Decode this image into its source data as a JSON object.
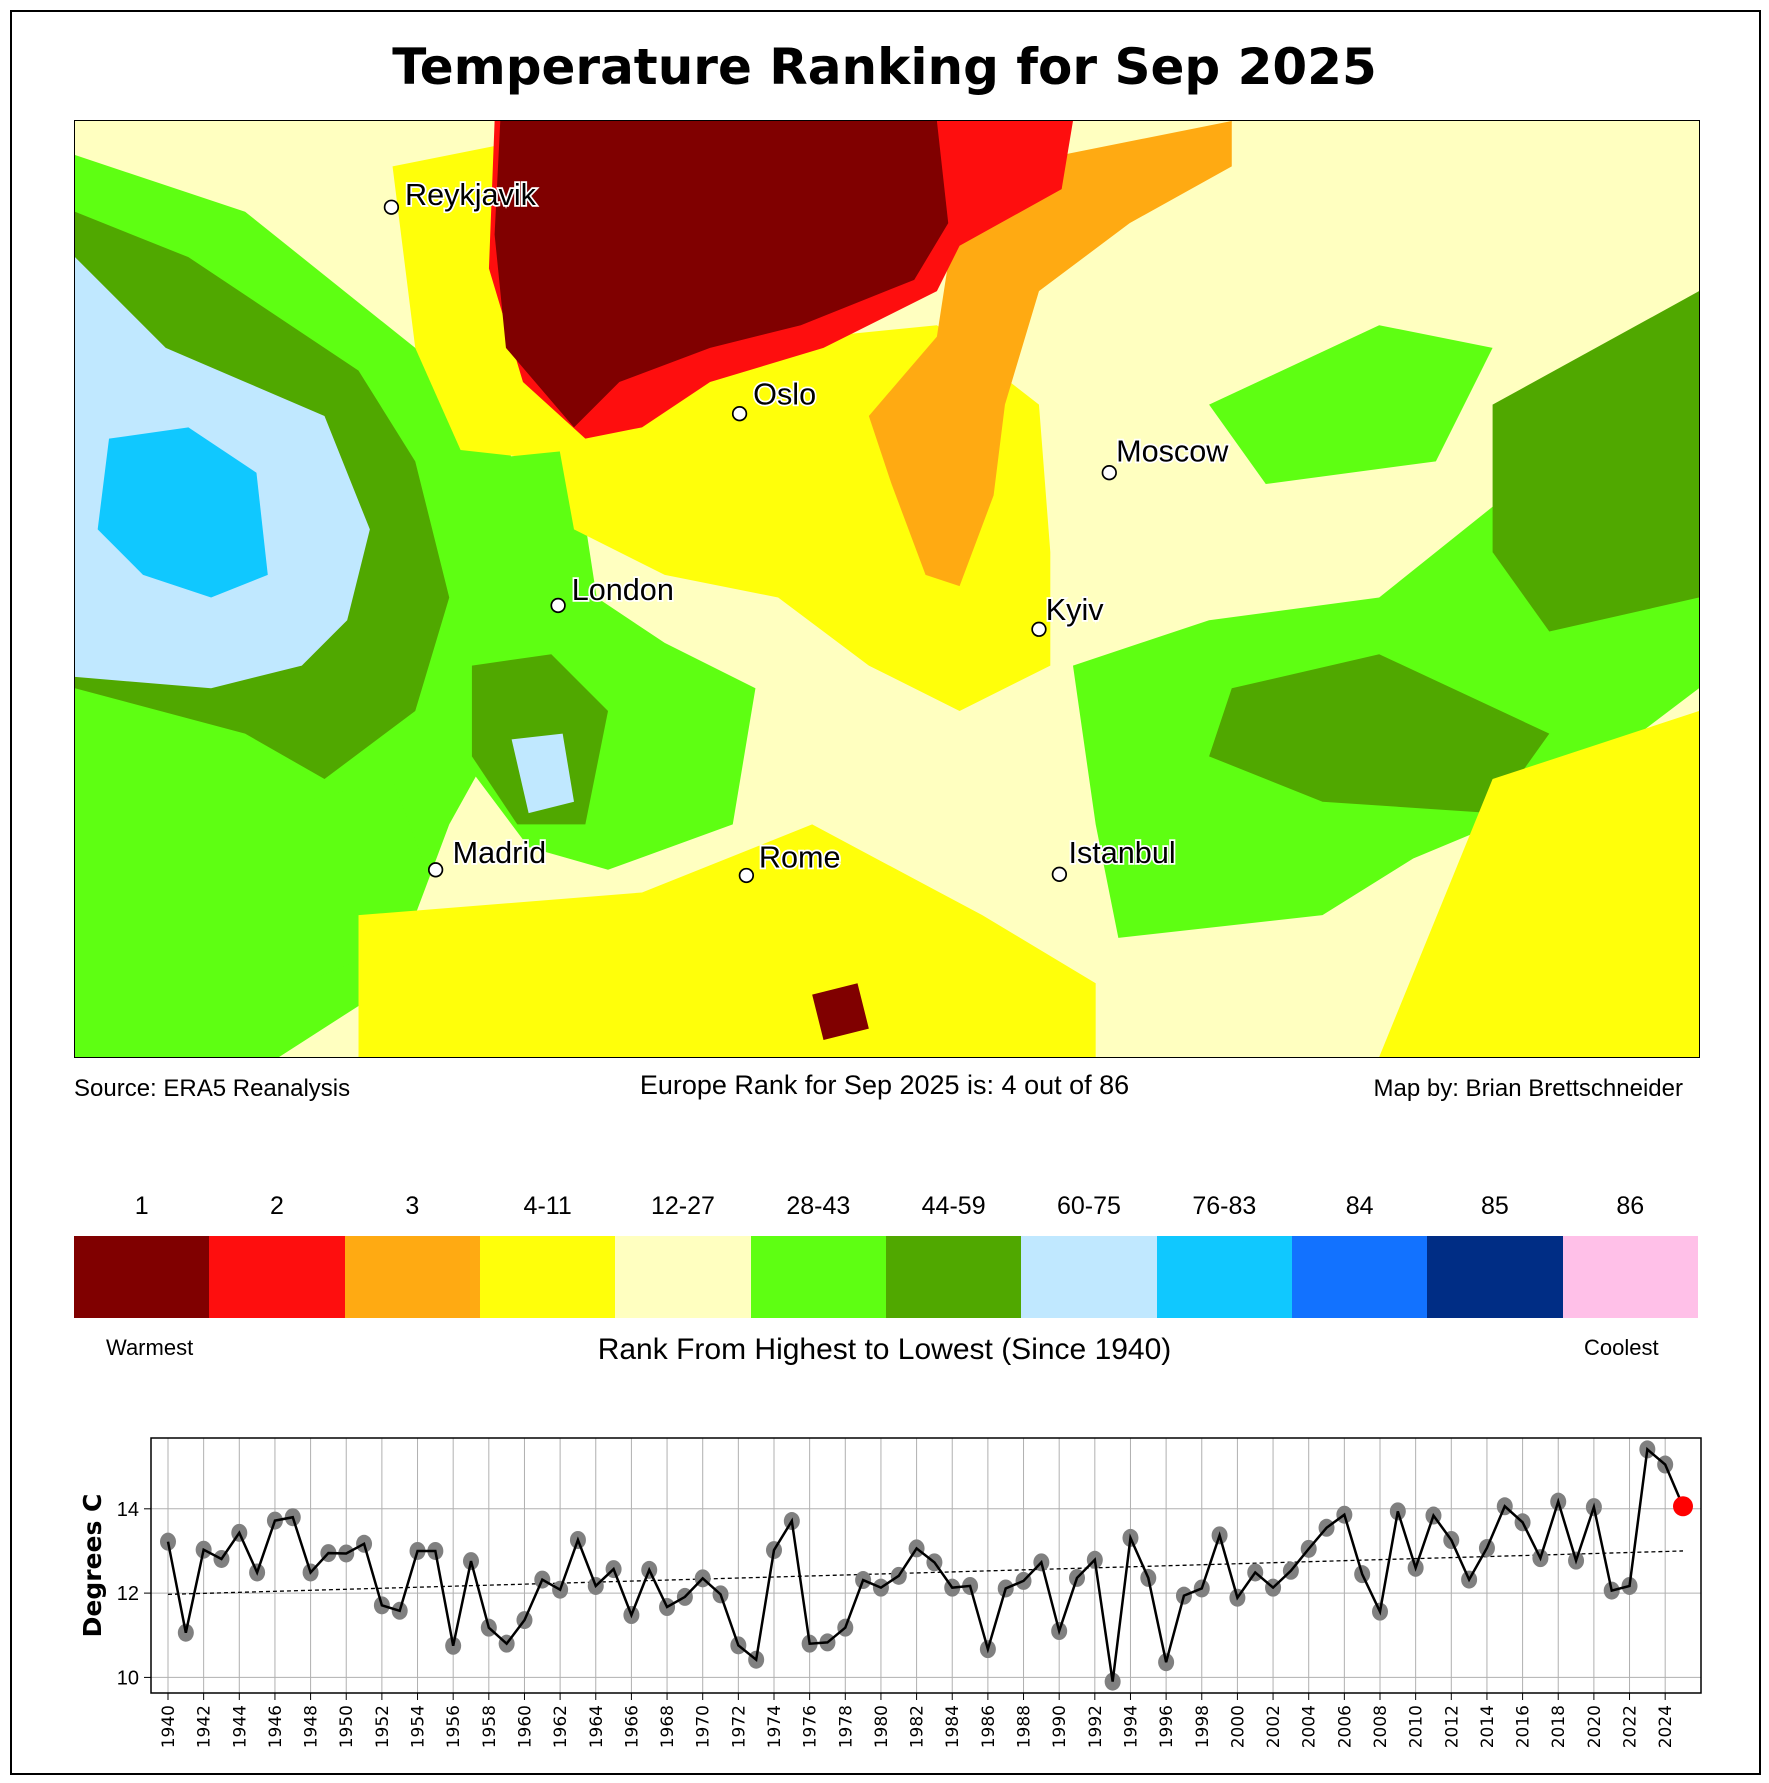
{
  "title": "Temperature Ranking for Sep 2025",
  "map": {
    "cities": [
      {
        "name": "Reykjavik"
      },
      {
        "name": "Oslo"
      },
      {
        "name": "Moscow"
      },
      {
        "name": "London"
      },
      {
        "name": "Kyiv"
      },
      {
        "name": "Madrid"
      },
      {
        "name": "Rome"
      },
      {
        "name": "Istanbul"
      }
    ]
  },
  "captions": {
    "source": "Source: ERA5 Reanalysis",
    "rank": "Europe Rank for Sep 2025 is: 4 out of 86",
    "credit": "Map by: Brian Brettschneider"
  },
  "legend": {
    "title": "Rank From Highest to Lowest (Since 1940)",
    "warmest": "Warmest",
    "coolest": "Coolest",
    "bins": [
      {
        "label": "1",
        "color": "#800000"
      },
      {
        "label": "2",
        "color": "#fe0e0e"
      },
      {
        "label": "3",
        "color": "#ffaa12"
      },
      {
        "label": "4-11",
        "color": "#ffff0a"
      },
      {
        "label": "12-27",
        "color": "#ffffc0"
      },
      {
        "label": "28-43",
        "color": "#5eff12"
      },
      {
        "label": "44-59",
        "color": "#50a800"
      },
      {
        "label": "60-75",
        "color": "#c0e8ff"
      },
      {
        "label": "76-83",
        "color": "#10c8ff"
      },
      {
        "label": "84",
        "color": "#1272ff"
      },
      {
        "label": "85",
        "color": "#002d85"
      },
      {
        "label": "86",
        "color": "#ffc0e8"
      }
    ]
  },
  "chart_data": {
    "type": "line",
    "ylabel": "Degrees C",
    "xlabel": "",
    "ylim": [
      9.63,
      15.68
    ],
    "xlim": [
      1939,
      2026.5
    ],
    "yticks": [
      10,
      12,
      14
    ],
    "grid": true,
    "highlight": {
      "year": 2025,
      "color": "#ff0000"
    },
    "trend": {
      "start": [
        1940,
        11.97
      ],
      "end": [
        2025,
        13.0
      ],
      "style": "dashed"
    },
    "x": [
      1940,
      1941,
      1942,
      1943,
      1944,
      1945,
      1946,
      1947,
      1948,
      1949,
      1950,
      1951,
      1952,
      1953,
      1954,
      1955,
      1956,
      1957,
      1958,
      1959,
      1960,
      1961,
      1962,
      1963,
      1964,
      1965,
      1966,
      1967,
      1968,
      1969,
      1970,
      1971,
      1972,
      1973,
      1974,
      1975,
      1976,
      1977,
      1978,
      1979,
      1980,
      1981,
      1982,
      1983,
      1984,
      1985,
      1986,
      1987,
      1988,
      1989,
      1990,
      1991,
      1992,
      1993,
      1994,
      1995,
      1996,
      1997,
      1998,
      1999,
      2000,
      2001,
      2002,
      2003,
      2004,
      2005,
      2006,
      2007,
      2008,
      2009,
      2010,
      2011,
      2012,
      2013,
      2014,
      2015,
      2016,
      2017,
      2018,
      2019,
      2020,
      2021,
      2022,
      2023,
      2024,
      2025
    ],
    "values": [
      13.22,
      11.06,
      13.03,
      12.81,
      13.43,
      12.49,
      13.72,
      13.8,
      12.49,
      12.95,
      12.94,
      13.17,
      11.71,
      11.58,
      13.0,
      13.0,
      10.75,
      12.76,
      11.18,
      10.8,
      11.36,
      12.32,
      12.08,
      13.26,
      12.17,
      12.57,
      11.48,
      12.55,
      11.67,
      11.91,
      12.35,
      11.97,
      10.76,
      10.42,
      13.02,
      13.71,
      10.8,
      10.83,
      11.18,
      12.31,
      12.13,
      12.41,
      13.06,
      12.73,
      12.13,
      12.17,
      10.67,
      12.11,
      12.29,
      12.73,
      11.1,
      12.36,
      12.79,
      9.9,
      13.31,
      12.36,
      10.36,
      11.94,
      12.11,
      13.37,
      11.89,
      12.49,
      12.13,
      12.53,
      13.05,
      13.55,
      13.86,
      12.45,
      11.56,
      13.94,
      12.6,
      13.84,
      13.26,
      12.32,
      13.07,
      14.06,
      13.68,
      12.83,
      14.17,
      12.77,
      14.04,
      12.06,
      12.17,
      15.41,
      15.05,
      14.06
    ]
  }
}
